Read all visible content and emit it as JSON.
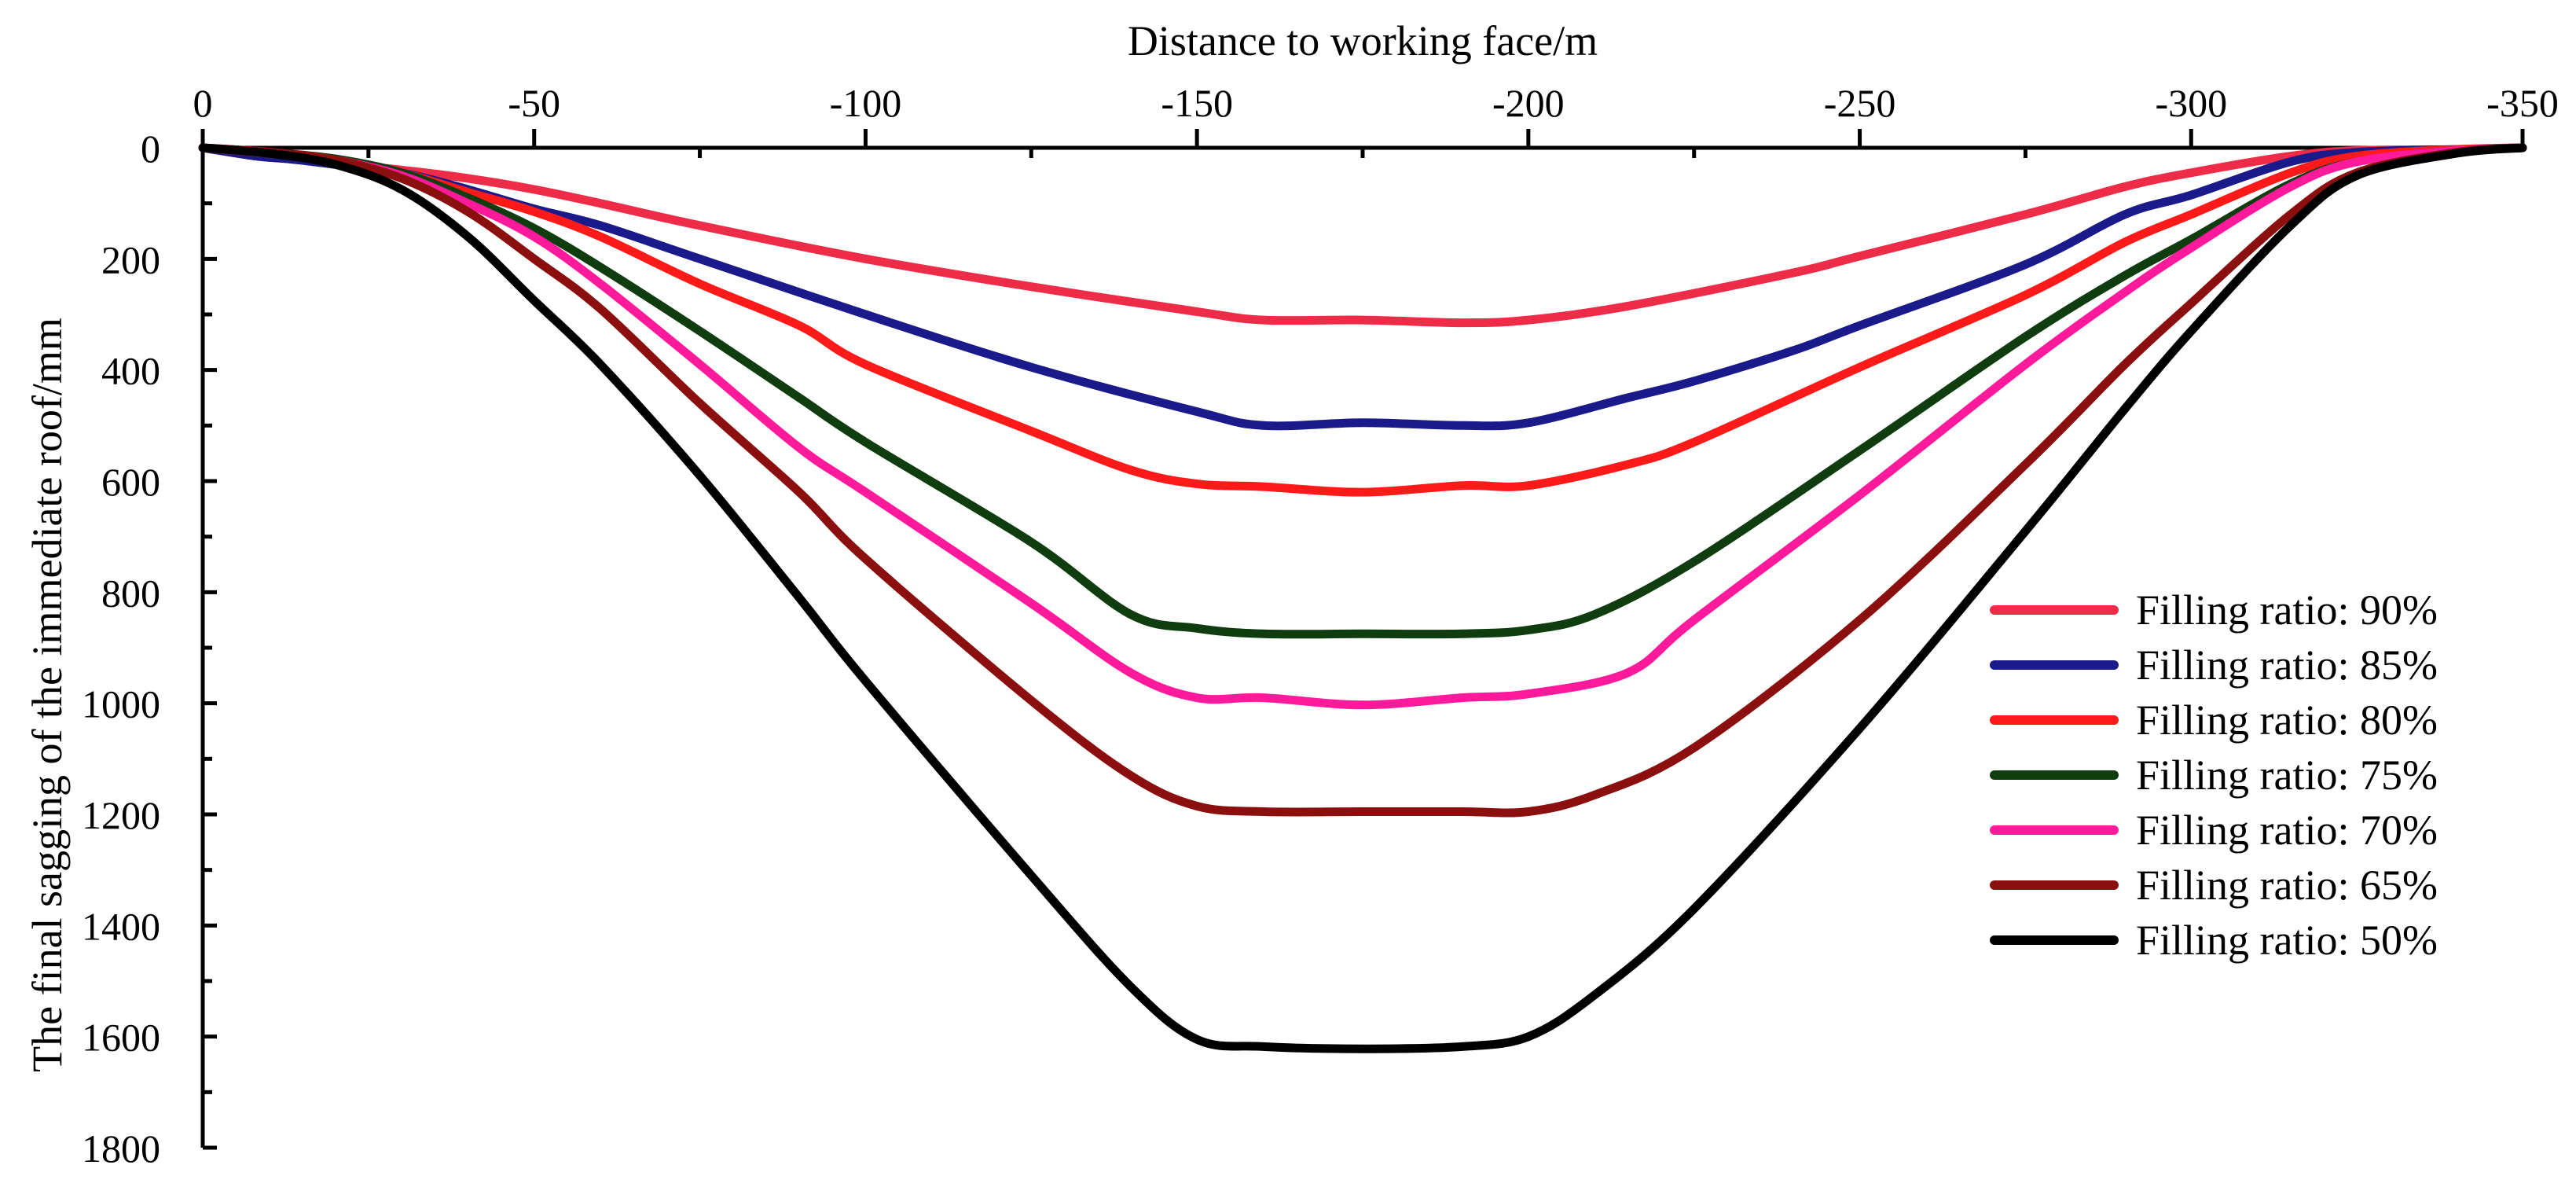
{
  "chart_data": {
    "type": "line",
    "xlabel": "Distance to working face/m",
    "ylabel": "The final sagging of  the immediate roof/mm",
    "xlim": [
      0,
      -350
    ],
    "ylim": [
      0,
      1800
    ],
    "x_ticks": [
      0,
      -50,
      -100,
      -150,
      -200,
      -250,
      -300,
      -350
    ],
    "x_tick_labels": [
      "0",
      "-50",
      "-100",
      "-150",
      "-200",
      "-250",
      "-300",
      "-350"
    ],
    "x_minor_step": 25,
    "y_ticks": [
      0,
      200,
      400,
      600,
      800,
      1000,
      1200,
      1400,
      1600,
      1800
    ],
    "y_tick_labels": [
      "0",
      "200",
      "400",
      "600",
      "800",
      "1000",
      "1200",
      "1400",
      "1600",
      "1800"
    ],
    "y_minor_step": 100,
    "x_axis_position": "top",
    "y_axis_inverted": true,
    "grid": false,
    "legend_position": "bottom-right",
    "series": [
      {
        "name": "Filling ratio: 90%",
        "color": "#ee2c48",
        "x": [
          0,
          -8,
          -13,
          -20,
          -30,
          -40,
          -50,
          -60,
          -75,
          -100,
          -125,
          -150,
          -160,
          -175,
          -190,
          -200,
          -215,
          -240,
          -250,
          -275,
          -290,
          -300,
          -315,
          -325,
          -340,
          -350
        ],
        "y": [
          0,
          15,
          20,
          28,
          40,
          55,
          75,
          100,
          140,
          200,
          250,
          295,
          310,
          310,
          315,
          310,
          285,
          225,
          195,
          120,
          70,
          45,
          15,
          5,
          3,
          0
        ]
      },
      {
        "name": "Filling ratio: 85%",
        "color": "#1a1a8a",
        "x": [
          0,
          -8,
          -13,
          -20,
          -30,
          -40,
          -50,
          -60,
          -75,
          -100,
          -125,
          -150,
          -160,
          -175,
          -190,
          -200,
          -215,
          -225,
          -240,
          -250,
          -275,
          -290,
          -300,
          -315,
          -325,
          -340,
          -350
        ],
        "y": [
          0,
          15,
          20,
          30,
          45,
          75,
          110,
          140,
          200,
          300,
          395,
          475,
          500,
          495,
          500,
          495,
          450,
          420,
          365,
          320,
          210,
          120,
          85,
          25,
          8,
          3,
          0
        ]
      },
      {
        "name": "Filling ratio: 80%",
        "color": "#ff1a1a",
        "x": [
          0,
          -10,
          -20,
          -30,
          -40,
          -50,
          -60,
          -75,
          -90,
          -100,
          -125,
          -140,
          -150,
          -160,
          -175,
          -190,
          -200,
          -215,
          -225,
          -250,
          -275,
          -290,
          -300,
          -315,
          -325,
          -340,
          -350
        ],
        "y": [
          0,
          10,
          25,
          45,
          80,
          115,
          160,
          245,
          320,
          390,
          510,
          580,
          605,
          610,
          620,
          608,
          608,
          570,
          530,
          395,
          265,
          170,
          120,
          45,
          15,
          3,
          0
        ]
      },
      {
        "name": "Filling ratio: 75%",
        "color": "#0f3d0f",
        "x": [
          0,
          -10,
          -20,
          -30,
          -40,
          -50,
          -60,
          -75,
          -90,
          -100,
          -125,
          -140,
          -150,
          -160,
          -175,
          -190,
          -200,
          -210,
          -225,
          -250,
          -275,
          -290,
          -300,
          -315,
          -325,
          -340,
          -350
        ],
        "y": [
          0,
          8,
          20,
          45,
          90,
          145,
          215,
          330,
          450,
          530,
          710,
          840,
          865,
          875,
          875,
          875,
          868,
          840,
          745,
          545,
          340,
          230,
          165,
          65,
          25,
          5,
          0
        ]
      },
      {
        "name": "Filling ratio: 70%",
        "color": "#ff1a9c",
        "x": [
          0,
          -10,
          -20,
          -30,
          -40,
          -50,
          -60,
          -75,
          -90,
          -100,
          -125,
          -140,
          -150,
          -160,
          -175,
          -190,
          -200,
          -215,
          -225,
          -250,
          -275,
          -290,
          -300,
          -315,
          -325,
          -340,
          -350
        ],
        "y": [
          0,
          8,
          22,
          50,
          100,
          160,
          245,
          390,
          540,
          620,
          820,
          945,
          990,
          990,
          1003,
          990,
          983,
          945,
          850,
          625,
          390,
          260,
          180,
          70,
          25,
          5,
          0
        ]
      },
      {
        "name": "Filling ratio: 65%",
        "color": "#8c0f0f",
        "x": [
          0,
          -10,
          -20,
          -30,
          -40,
          -50,
          -60,
          -75,
          -90,
          -100,
          -125,
          -140,
          -150,
          -160,
          -175,
          -190,
          -200,
          -210,
          -225,
          -250,
          -275,
          -290,
          -300,
          -315,
          -325,
          -340,
          -350
        ],
        "y": [
          0,
          8,
          22,
          55,
          115,
          200,
          290,
          460,
          620,
          740,
          995,
          1130,
          1185,
          1195,
          1195,
          1195,
          1195,
          1165,
          1080,
          850,
          570,
          390,
          280,
          120,
          45,
          8,
          0
        ]
      },
      {
        "name": "Filling ratio: 50%",
        "color": "#000000",
        "x": [
          0,
          -10,
          -20,
          -30,
          -40,
          -50,
          -60,
          -75,
          -90,
          -100,
          -125,
          -140,
          -150,
          -160,
          -175,
          -190,
          -200,
          -210,
          -225,
          -250,
          -275,
          -290,
          -300,
          -315,
          -325,
          -340,
          -350
        ],
        "y": [
          0,
          10,
          30,
          75,
          160,
          275,
          390,
          590,
          810,
          960,
          1310,
          1510,
          1605,
          1618,
          1622,
          1618,
          1600,
          1525,
          1370,
          1045,
          690,
          470,
          330,
          140,
          50,
          10,
          0
        ]
      }
    ]
  }
}
